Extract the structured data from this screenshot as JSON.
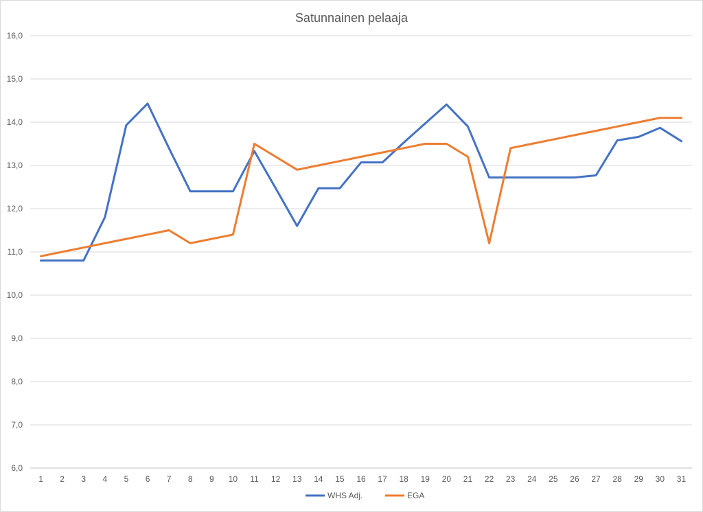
{
  "chart_data": {
    "type": "line",
    "title": "Satunnainen pelaaja",
    "xlabel": "",
    "ylabel": "",
    "categories": [
      "1",
      "2",
      "3",
      "4",
      "5",
      "6",
      "7",
      "8",
      "9",
      "10",
      "11",
      "12",
      "13",
      "14",
      "15",
      "16",
      "17",
      "18",
      "19",
      "20",
      "21",
      "22",
      "23",
      "24",
      "25",
      "26",
      "27",
      "28",
      "29",
      "30",
      "31"
    ],
    "ylim": [
      6.0,
      16.0
    ],
    "yticks": [
      "6,0",
      "7,0",
      "8,0",
      "9,0",
      "10,0",
      "11,0",
      "12,0",
      "13,0",
      "14,0",
      "15,0",
      "16,0"
    ],
    "grid": true,
    "legend_position": "bottom",
    "series": [
      {
        "name": "WHS Adj.",
        "color": "#4472c4",
        "values": [
          10.8,
          10.8,
          10.8,
          11.8,
          13.93,
          14.43,
          13.4,
          12.4,
          12.4,
          12.4,
          13.33,
          12.47,
          11.6,
          12.47,
          12.47,
          13.07,
          13.07,
          13.53,
          13.97,
          14.41,
          13.9,
          12.72,
          12.72,
          12.72,
          12.72,
          12.72,
          12.77,
          13.58,
          13.66,
          13.87,
          13.56
        ]
      },
      {
        "name": "EGA",
        "color": "#ed7d31",
        "values": [
          10.9,
          11.0,
          11.1,
          11.2,
          11.3,
          11.4,
          11.5,
          11.2,
          11.3,
          11.4,
          13.5,
          13.2,
          12.9,
          13.0,
          13.1,
          13.2,
          13.3,
          13.4,
          13.5,
          13.5,
          13.2,
          11.2,
          13.4,
          13.5,
          13.6,
          13.7,
          13.8,
          13.9,
          14.0,
          14.1,
          14.1
        ]
      }
    ]
  }
}
